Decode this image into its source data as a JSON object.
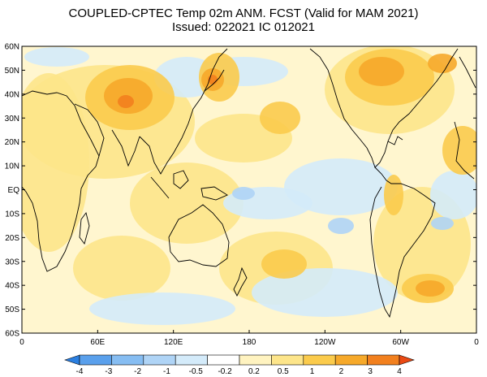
{
  "title": {
    "line1": "COUPLED-CPTEC Temp 02m ANM. FCST  (Valid for MAM 2021)",
    "line2": "Issued:  022021 IC 012021"
  },
  "axes": {
    "lat_labels": [
      "60N",
      "50N",
      "40N",
      "30N",
      "20N",
      "10N",
      "EQ",
      "10S",
      "20S",
      "30S",
      "40S",
      "50S",
      "60S"
    ],
    "lon_labels": [
      "0",
      "60E",
      "120E",
      "180",
      "120W",
      "60W",
      "0"
    ]
  },
  "colorbar": {
    "labels": [
      "-4",
      "-3",
      "-2",
      "-1",
      "-0.5",
      "-0.2",
      "0.2",
      "0.5",
      "1",
      "2",
      "3",
      "4"
    ],
    "colors": [
      "#2b7fe0",
      "#5aa0ec",
      "#86bdf2",
      "#afd4f6",
      "#d4ebfa",
      "#ffffff",
      "#fff3c0",
      "#fde58a",
      "#fbcb4c",
      "#f6a92a",
      "#f2801e",
      "#ea4a14"
    ]
  },
  "palette": {
    "ocean_base": "#fff6cf",
    "light_blue": "#d4ebfa",
    "mid_blue": "#afd4f6",
    "blue": "#86bdf2",
    "pale_yellow": "#fff3c0",
    "yellow": "#fde58a",
    "orange_light": "#fbcb4c",
    "orange": "#f6a92a",
    "orange_dark": "#f2801e",
    "red": "#ea4a14"
  }
}
